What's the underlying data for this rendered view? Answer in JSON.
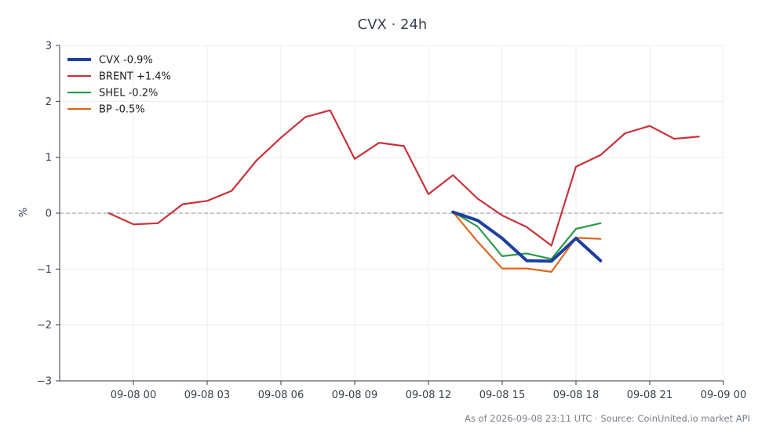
{
  "chart_data": {
    "type": "line",
    "title": "CVX · 24h",
    "xlabel": "",
    "ylabel": "%",
    "footer": "As of 2026-09-08 23:11 UTC · Source: CoinUnited.io market API",
    "ylim": [
      -3,
      3
    ],
    "xlim": [
      "2026-09-07 21:00",
      "2026-09-09 00:00"
    ],
    "x_tick_labels": [
      "09-08 00",
      "09-08 03",
      "09-08 06",
      "09-08 09",
      "09-08 12",
      "09-08 15",
      "09-08 18",
      "09-08 21",
      "09-09 00"
    ],
    "x_ticks": [
      "2026-09-08 00:00",
      "2026-09-08 03:00",
      "2026-09-08 06:00",
      "2026-09-08 09:00",
      "2026-09-08 12:00",
      "2026-09-08 15:00",
      "2026-09-08 18:00",
      "2026-09-08 21:00",
      "2026-09-09 00:00"
    ],
    "y_ticks": [
      3,
      2,
      1,
      0,
      -1,
      -2,
      -3
    ],
    "y_tick_labels": [
      "3",
      "2",
      "1",
      "0",
      "−1",
      "−2",
      "−3"
    ],
    "grid": true,
    "zero_line": true,
    "legend_position": "top-left",
    "series": [
      {
        "name": "CVX -0.9%",
        "color": "#1f3f9e",
        "emphasis": true,
        "x": [
          "2026-09-08 13:00",
          "2026-09-08 14:00",
          "2026-09-08 15:00",
          "2026-09-08 16:00",
          "2026-09-08 17:00",
          "2026-09-08 18:00",
          "2026-09-08 19:00"
        ],
        "y": [
          0.02,
          -0.13,
          -0.45,
          -0.85,
          -0.86,
          -0.45,
          -0.85
        ]
      },
      {
        "name": "BRENT +1.4%",
        "color": "#c8323a",
        "emphasis": false,
        "x": [
          "2026-09-07 23:00",
          "2026-09-08 00:00",
          "2026-09-08 01:00",
          "2026-09-08 02:00",
          "2026-09-08 03:00",
          "2026-09-08 04:00",
          "2026-09-08 05:00",
          "2026-09-08 06:00",
          "2026-09-08 07:00",
          "2026-09-08 08:00",
          "2026-09-08 09:00",
          "2026-09-08 10:00",
          "2026-09-08 11:00",
          "2026-09-08 12:00",
          "2026-09-08 13:00",
          "2026-09-08 14:00",
          "2026-09-08 15:00",
          "2026-09-08 16:00",
          "2026-09-08 17:00",
          "2026-09-08 18:00",
          "2026-09-08 19:00",
          "2026-09-08 20:00",
          "2026-09-08 21:00",
          "2026-09-08 22:00",
          "2026-09-08 23:00"
        ],
        "y": [
          0.0,
          -0.2,
          -0.18,
          0.16,
          0.22,
          0.4,
          0.94,
          1.35,
          1.72,
          1.84,
          0.97,
          1.26,
          1.2,
          0.34,
          0.68,
          0.26,
          -0.04,
          -0.25,
          -0.58,
          0.83,
          1.04,
          1.43,
          1.56,
          1.33,
          1.37
        ]
      },
      {
        "name": "SHEL -0.2%",
        "color": "#2e9a4c",
        "emphasis": false,
        "x": [
          "2026-09-08 13:00",
          "2026-09-08 14:00",
          "2026-09-08 15:00",
          "2026-09-08 16:00",
          "2026-09-08 17:00",
          "2026-09-08 18:00",
          "2026-09-08 19:00"
        ],
        "y": [
          0.02,
          -0.24,
          -0.77,
          -0.72,
          -0.82,
          -0.28,
          -0.18
        ]
      },
      {
        "name": "BP -0.5%",
        "color": "#e0661d",
        "emphasis": false,
        "x": [
          "2026-09-08 13:00",
          "2026-09-08 14:00",
          "2026-09-08 15:00",
          "2026-09-08 16:00",
          "2026-09-08 17:00",
          "2026-09-08 18:00",
          "2026-09-08 19:00"
        ],
        "y": [
          0.02,
          -0.51,
          -0.99,
          -0.99,
          -1.05,
          -0.44,
          -0.46
        ]
      }
    ]
  }
}
